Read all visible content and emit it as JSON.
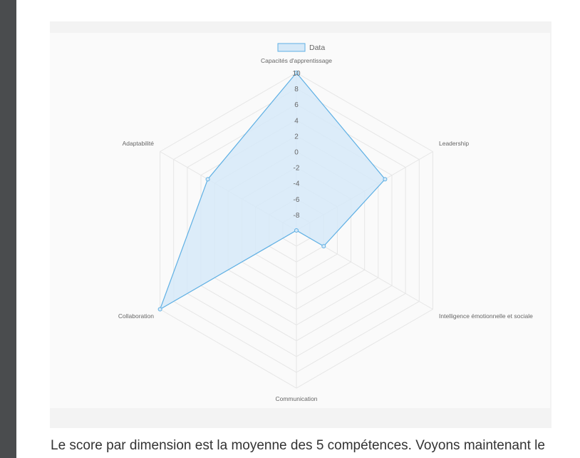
{
  "chart_data": {
    "type": "radar",
    "title": "",
    "legend": {
      "label": "Data",
      "position": "top-center"
    },
    "categories": [
      "Capacités d'apprentissage",
      "Leadership",
      "Intelligence émotionnelle et sociale",
      "Communication",
      "Collaboration",
      "Adaptabilité"
    ],
    "series": [
      {
        "name": "Data",
        "values": [
          10,
          3,
          -6,
          -10,
          10,
          3
        ]
      }
    ],
    "r_range": [
      -10,
      10
    ],
    "r_ticks": [
      "10",
      "8",
      "6",
      "4",
      "2",
      "0",
      "-2",
      "-4",
      "-6",
      "-8"
    ],
    "grid": true,
    "colors": {
      "fill": "#d6e9f8",
      "stroke": "#5fb0e4",
      "grid": "#e6e6e6",
      "label": "#666666"
    }
  },
  "caption": {
    "text": "Le score par dimension est la moyenne des 5 compétences. Voyons maintenant le"
  }
}
